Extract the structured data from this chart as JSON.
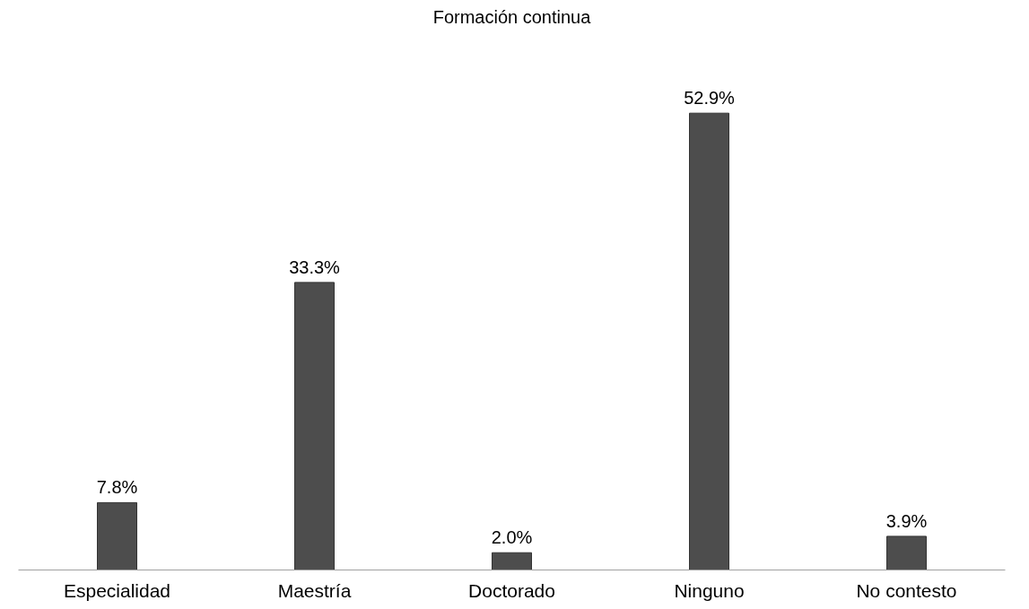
{
  "chart_data": {
    "type": "bar",
    "title": "Formación continua",
    "categories": [
      "Especialidad",
      "Maestría",
      "Doctorado",
      "Ninguno",
      "No contesto"
    ],
    "values": [
      7.8,
      33.3,
      2.0,
      52.9,
      3.9
    ],
    "value_labels": [
      "7.8%",
      "33.3%",
      "2.0%",
      "52.9%",
      "3.9%"
    ],
    "color": "#4d4d4d"
  }
}
